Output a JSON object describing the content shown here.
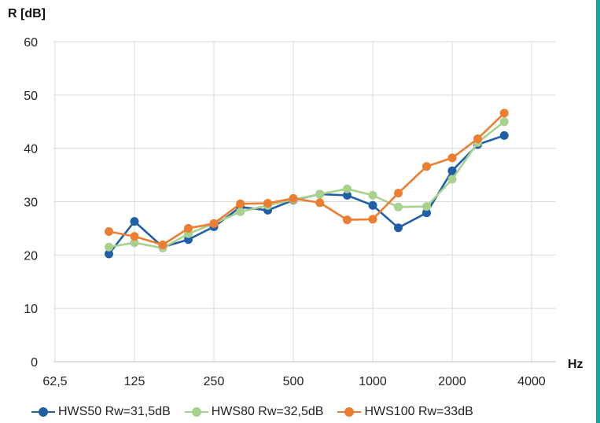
{
  "chart_data": {
    "type": "line",
    "ylabel": "R [dB]",
    "xlabel": "Hz",
    "ylim": [
      0,
      60
    ],
    "y_ticks": [
      "0",
      "10",
      "20",
      "30",
      "40",
      "50",
      "60"
    ],
    "x_tick_labels": [
      "62,5",
      "125",
      "250",
      "500",
      "1000",
      "2000",
      "4000"
    ],
    "grid": "horizontal and vertical",
    "legend_position": "bottom",
    "x": [
      "100",
      "125",
      "160",
      "200",
      "250",
      "315",
      "400",
      "500",
      "630",
      "800",
      "1000",
      "1250",
      "1600",
      "2000",
      "2500",
      "3150"
    ],
    "series": [
      {
        "name": "HWS50 Rw=31,5dB",
        "color": "#1f5fa8",
        "values": [
          20.2,
          26.3,
          21.5,
          22.9,
          25.3,
          29.0,
          28.4,
          30.3,
          31.4,
          31.2,
          29.3,
          25.1,
          27.9,
          35.8,
          40.7,
          42.4
        ]
      },
      {
        "name": "HWS80 Rw=32,5dB",
        "color": "#a9d18e",
        "values": [
          21.5,
          22.3,
          21.3,
          24.0,
          25.9,
          28.1,
          29.3,
          30.4,
          31.4,
          32.4,
          31.2,
          29.0,
          29.1,
          34.2,
          41.1,
          45.0
        ]
      },
      {
        "name": "HWS100 Rw=33dB",
        "color": "#ed7d31",
        "values": [
          24.4,
          23.5,
          21.9,
          25.0,
          25.9,
          29.6,
          29.7,
          30.6,
          29.8,
          26.6,
          26.7,
          31.6,
          36.6,
          38.2,
          41.8,
          46.6
        ]
      }
    ]
  }
}
